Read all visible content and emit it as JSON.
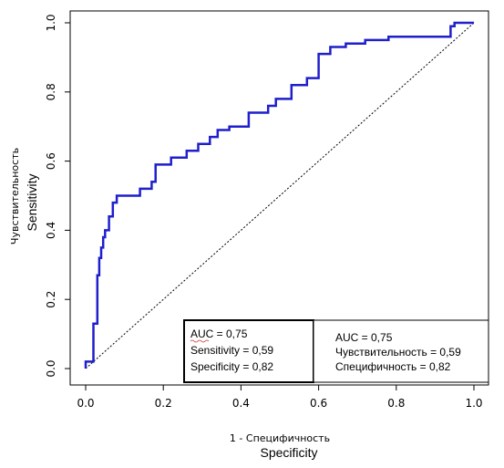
{
  "chart_data": {
    "type": "line",
    "title": "",
    "xlabel_ru": "1 - Специфичность",
    "xlabel_en": "Specificity",
    "ylabel_ru": "Чувствительность",
    "ylabel_en": "Sensitivity",
    "xlim": [
      0,
      1
    ],
    "ylim": [
      0,
      1
    ],
    "x_ticks": [
      "0.0",
      "0.2",
      "0.4",
      "0.6",
      "0.8",
      "1.0"
    ],
    "y_ticks": [
      "0.0",
      "0.2",
      "0.4",
      "0.6",
      "0.8",
      "1.0"
    ],
    "grid": false,
    "line_color": "#1f1fcc",
    "reference_line": {
      "x": [
        0,
        1
      ],
      "y": [
        0,
        1
      ],
      "style": "dotted"
    },
    "series": [
      {
        "x": [
          0.0,
          0.0,
          0.02,
          0.02,
          0.03,
          0.03,
          0.035,
          0.035,
          0.04,
          0.04,
          0.045,
          0.045,
          0.05,
          0.05,
          0.06,
          0.06,
          0.07,
          0.07,
          0.08,
          0.08,
          0.09,
          0.09,
          0.14,
          0.14,
          0.17,
          0.17,
          0.18,
          0.18,
          0.22,
          0.22,
          0.26,
          0.26,
          0.29,
          0.29,
          0.32,
          0.32,
          0.34,
          0.34,
          0.37,
          0.37,
          0.42,
          0.42,
          0.47,
          0.47,
          0.49,
          0.49,
          0.53,
          0.53,
          0.57,
          0.57,
          0.6,
          0.6,
          0.63,
          0.63,
          0.67,
          0.67,
          0.72,
          0.72,
          0.78,
          0.78,
          0.88,
          0.88,
          0.94,
          0.94,
          0.95,
          0.95,
          1.0
        ],
        "y": [
          0.0,
          0.02,
          0.02,
          0.13,
          0.13,
          0.27,
          0.27,
          0.32,
          0.32,
          0.35,
          0.35,
          0.38,
          0.38,
          0.4,
          0.4,
          0.44,
          0.44,
          0.48,
          0.48,
          0.5,
          0.5,
          0.5,
          0.5,
          0.52,
          0.52,
          0.54,
          0.54,
          0.59,
          0.59,
          0.61,
          0.61,
          0.63,
          0.63,
          0.65,
          0.65,
          0.67,
          0.67,
          0.69,
          0.69,
          0.7,
          0.7,
          0.74,
          0.74,
          0.76,
          0.76,
          0.78,
          0.78,
          0.82,
          0.82,
          0.84,
          0.84,
          0.91,
          0.91,
          0.93,
          0.93,
          0.94,
          0.94,
          0.95,
          0.95,
          0.96,
          0.96,
          0.96,
          0.96,
          0.99,
          0.99,
          1.0,
          1.0
        ]
      }
    ]
  },
  "legend_box_en": {
    "auc": "AUC = 0,75",
    "sensitivity": "Sensitivity = 0,59",
    "specificity": "Specificity = 0,82"
  },
  "legend_box_ru": {
    "auc": "AUC = 0,75",
    "sensitivity": "Чувствительность = 0,59",
    "specificity": "Специфичность = 0,82"
  }
}
